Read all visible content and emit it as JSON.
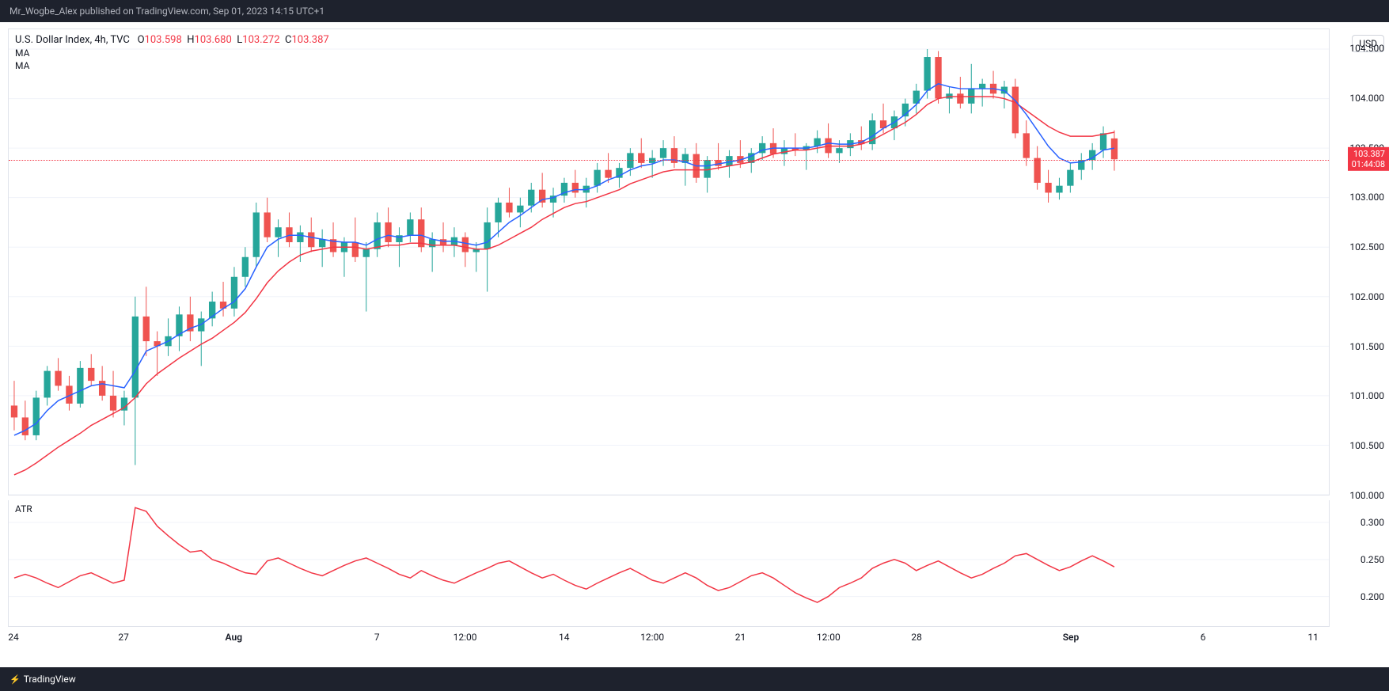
{
  "header": {
    "text": "Mr_Wogbe_Alex published on TradingView.com, Sep 01, 2023 14:15 UTC+1"
  },
  "footer": {
    "brand": "TradingView"
  },
  "legend": {
    "symbol": "U.S. Dollar Index, 4h, TVC",
    "o_label": "O",
    "o_value": "103.598",
    "h_label": "H",
    "h_value": "103.680",
    "l_label": "L",
    "l_value": "103.272",
    "c_label": "C",
    "c_value": "103.387",
    "ma1": "MA",
    "ma2": "MA"
  },
  "currency_badge": "USD",
  "sub_legend": "ATR",
  "current_price_tag": {
    "price": "103.387",
    "countdown": "01:44:08"
  },
  "main_chart": {
    "type": "candlestick",
    "width_bars": 120,
    "ylim": [
      100.0,
      104.7
    ],
    "ytick_step": 0.5,
    "yticks": [
      "104.500",
      "104.000",
      "103.500",
      "103.000",
      "102.500",
      "102.000",
      "101.500",
      "101.000",
      "100.500",
      "100.000"
    ],
    "ytick_values": [
      104.5,
      104.0,
      103.5,
      103.0,
      102.5,
      102.0,
      101.5,
      101.0,
      100.5,
      100.0
    ],
    "grid_color": "#f0f3fa",
    "up_color": "#26a69a",
    "down_color": "#ef5350",
    "up_border": "#26a69a",
    "down_border": "#ef5350",
    "ma_fast_color": "#2962ff",
    "ma_slow_color": "#f23645",
    "current_price": 103.387,
    "candles": [
      {
        "o": 100.9,
        "h": 101.15,
        "l": 100.65,
        "c": 100.78
      },
      {
        "o": 100.78,
        "h": 100.95,
        "l": 100.55,
        "c": 100.6
      },
      {
        "o": 100.6,
        "h": 101.05,
        "l": 100.55,
        "c": 100.98
      },
      {
        "o": 100.98,
        "h": 101.3,
        "l": 100.9,
        "c": 101.25
      },
      {
        "o": 101.25,
        "h": 101.38,
        "l": 101.05,
        "c": 101.1
      },
      {
        "o": 101.1,
        "h": 101.2,
        "l": 100.85,
        "c": 100.92
      },
      {
        "o": 100.92,
        "h": 101.35,
        "l": 100.88,
        "c": 101.28
      },
      {
        "o": 101.28,
        "h": 101.42,
        "l": 101.1,
        "c": 101.15
      },
      {
        "o": 101.15,
        "h": 101.3,
        "l": 100.95,
        "c": 101.0
      },
      {
        "o": 101.0,
        "h": 101.25,
        "l": 100.78,
        "c": 100.85
      },
      {
        "o": 100.85,
        "h": 101.05,
        "l": 100.7,
        "c": 100.98
      },
      {
        "o": 100.98,
        "h": 102.0,
        "l": 100.3,
        "c": 101.8
      },
      {
        "o": 101.8,
        "h": 102.1,
        "l": 101.4,
        "c": 101.55
      },
      {
        "o": 101.55,
        "h": 101.65,
        "l": 101.2,
        "c": 101.5
      },
      {
        "o": 101.5,
        "h": 101.78,
        "l": 101.4,
        "c": 101.6
      },
      {
        "o": 101.6,
        "h": 101.9,
        "l": 101.45,
        "c": 101.82
      },
      {
        "o": 101.82,
        "h": 102.0,
        "l": 101.55,
        "c": 101.65
      },
      {
        "o": 101.65,
        "h": 101.85,
        "l": 101.3,
        "c": 101.78
      },
      {
        "o": 101.78,
        "h": 102.05,
        "l": 101.7,
        "c": 101.95
      },
      {
        "o": 101.95,
        "h": 102.15,
        "l": 101.8,
        "c": 101.88
      },
      {
        "o": 101.88,
        "h": 102.3,
        "l": 101.8,
        "c": 102.2
      },
      {
        "o": 102.2,
        "h": 102.5,
        "l": 102.1,
        "c": 102.4
      },
      {
        "o": 102.4,
        "h": 102.95,
        "l": 102.3,
        "c": 102.85
      },
      {
        "o": 102.85,
        "h": 103.0,
        "l": 102.55,
        "c": 102.6
      },
      {
        "o": 102.6,
        "h": 102.78,
        "l": 102.4,
        "c": 102.7
      },
      {
        "o": 102.7,
        "h": 102.85,
        "l": 102.5,
        "c": 102.55
      },
      {
        "o": 102.55,
        "h": 102.72,
        "l": 102.35,
        "c": 102.65
      },
      {
        "o": 102.65,
        "h": 102.8,
        "l": 102.45,
        "c": 102.5
      },
      {
        "o": 102.5,
        "h": 102.68,
        "l": 102.3,
        "c": 102.58
      },
      {
        "o": 102.58,
        "h": 102.75,
        "l": 102.4,
        "c": 102.45
      },
      {
        "o": 102.45,
        "h": 102.6,
        "l": 102.2,
        "c": 102.55
      },
      {
        "o": 102.55,
        "h": 102.8,
        "l": 102.35,
        "c": 102.4
      },
      {
        "o": 102.4,
        "h": 102.55,
        "l": 101.85,
        "c": 102.48
      },
      {
        "o": 102.48,
        "h": 102.85,
        "l": 102.4,
        "c": 102.75
      },
      {
        "o": 102.75,
        "h": 102.9,
        "l": 102.5,
        "c": 102.55
      },
      {
        "o": 102.55,
        "h": 102.7,
        "l": 102.3,
        "c": 102.62
      },
      {
        "o": 102.62,
        "h": 102.85,
        "l": 102.55,
        "c": 102.78
      },
      {
        "o": 102.78,
        "h": 102.9,
        "l": 102.45,
        "c": 102.5
      },
      {
        "o": 102.5,
        "h": 102.65,
        "l": 102.25,
        "c": 102.58
      },
      {
        "o": 102.58,
        "h": 102.75,
        "l": 102.45,
        "c": 102.52
      },
      {
        "o": 102.52,
        "h": 102.7,
        "l": 102.4,
        "c": 102.6
      },
      {
        "o": 102.6,
        "h": 102.65,
        "l": 102.3,
        "c": 102.45
      },
      {
        "o": 102.45,
        "h": 102.55,
        "l": 102.25,
        "c": 102.48
      },
      {
        "o": 102.48,
        "h": 102.9,
        "l": 102.05,
        "c": 102.75
      },
      {
        "o": 102.75,
        "h": 103.0,
        "l": 102.6,
        "c": 102.95
      },
      {
        "o": 102.95,
        "h": 103.1,
        "l": 102.8,
        "c": 102.85
      },
      {
        "o": 102.85,
        "h": 103.0,
        "l": 102.7,
        "c": 102.92
      },
      {
        "o": 102.92,
        "h": 103.15,
        "l": 102.85,
        "c": 103.08
      },
      {
        "o": 103.08,
        "h": 103.25,
        "l": 102.9,
        "c": 102.95
      },
      {
        "o": 102.95,
        "h": 103.1,
        "l": 102.8,
        "c": 103.02
      },
      {
        "o": 103.02,
        "h": 103.2,
        "l": 102.95,
        "c": 103.15
      },
      {
        "o": 103.15,
        "h": 103.28,
        "l": 103.0,
        "c": 103.05
      },
      {
        "o": 103.05,
        "h": 103.2,
        "l": 102.9,
        "c": 103.12
      },
      {
        "o": 103.12,
        "h": 103.35,
        "l": 103.05,
        "c": 103.28
      },
      {
        "o": 103.28,
        "h": 103.45,
        "l": 103.15,
        "c": 103.2
      },
      {
        "o": 103.2,
        "h": 103.35,
        "l": 103.1,
        "c": 103.3
      },
      {
        "o": 103.3,
        "h": 103.5,
        "l": 103.22,
        "c": 103.45
      },
      {
        "o": 103.45,
        "h": 103.6,
        "l": 103.3,
        "c": 103.35
      },
      {
        "o": 103.35,
        "h": 103.48,
        "l": 103.2,
        "c": 103.4
      },
      {
        "o": 103.4,
        "h": 103.58,
        "l": 103.32,
        "c": 103.5
      },
      {
        "o": 103.5,
        "h": 103.62,
        "l": 103.3,
        "c": 103.35
      },
      {
        "o": 103.35,
        "h": 103.5,
        "l": 103.12,
        "c": 103.44
      },
      {
        "o": 103.44,
        "h": 103.55,
        "l": 103.15,
        "c": 103.2
      },
      {
        "o": 103.2,
        "h": 103.42,
        "l": 103.05,
        "c": 103.38
      },
      {
        "o": 103.38,
        "h": 103.55,
        "l": 103.28,
        "c": 103.32
      },
      {
        "o": 103.32,
        "h": 103.48,
        "l": 103.2,
        "c": 103.42
      },
      {
        "o": 103.42,
        "h": 103.58,
        "l": 103.3,
        "c": 103.35
      },
      {
        "o": 103.35,
        "h": 103.5,
        "l": 103.25,
        "c": 103.45
      },
      {
        "o": 103.45,
        "h": 103.62,
        "l": 103.38,
        "c": 103.55
      },
      {
        "o": 103.55,
        "h": 103.7,
        "l": 103.4,
        "c": 103.44
      },
      {
        "o": 103.44,
        "h": 103.58,
        "l": 103.32,
        "c": 103.5
      },
      {
        "o": 103.5,
        "h": 103.65,
        "l": 103.42,
        "c": 103.48
      },
      {
        "o": 103.48,
        "h": 103.55,
        "l": 103.28,
        "c": 103.52
      },
      {
        "o": 103.52,
        "h": 103.68,
        "l": 103.45,
        "c": 103.6
      },
      {
        "o": 103.6,
        "h": 103.75,
        "l": 103.4,
        "c": 103.45
      },
      {
        "o": 103.45,
        "h": 103.58,
        "l": 103.35,
        "c": 103.5
      },
      {
        "o": 103.5,
        "h": 103.65,
        "l": 103.42,
        "c": 103.58
      },
      {
        "o": 103.58,
        "h": 103.72,
        "l": 103.48,
        "c": 103.54
      },
      {
        "o": 103.54,
        "h": 103.85,
        "l": 103.48,
        "c": 103.78
      },
      {
        "o": 103.78,
        "h": 103.95,
        "l": 103.65,
        "c": 103.7
      },
      {
        "o": 103.7,
        "h": 103.88,
        "l": 103.58,
        "c": 103.82
      },
      {
        "o": 103.82,
        "h": 104.0,
        "l": 103.72,
        "c": 103.95
      },
      {
        "o": 103.95,
        "h": 104.15,
        "l": 103.85,
        "c": 104.08
      },
      {
        "o": 104.08,
        "h": 104.5,
        "l": 104.0,
        "c": 104.42
      },
      {
        "o": 104.42,
        "h": 104.48,
        "l": 103.95,
        "c": 104.0
      },
      {
        "o": 104.0,
        "h": 104.12,
        "l": 103.85,
        "c": 104.05
      },
      {
        "o": 104.05,
        "h": 104.22,
        "l": 103.9,
        "c": 103.95
      },
      {
        "o": 103.95,
        "h": 104.35,
        "l": 103.85,
        "c": 104.1
      },
      {
        "o": 104.1,
        "h": 104.2,
        "l": 103.92,
        "c": 104.15
      },
      {
        "o": 104.15,
        "h": 104.28,
        "l": 104.0,
        "c": 104.05
      },
      {
        "o": 104.05,
        "h": 104.18,
        "l": 103.9,
        "c": 104.12
      },
      {
        "o": 104.12,
        "h": 104.2,
        "l": 103.6,
        "c": 103.65
      },
      {
        "o": 103.65,
        "h": 103.78,
        "l": 103.32,
        "c": 103.4
      },
      {
        "o": 103.4,
        "h": 103.52,
        "l": 103.08,
        "c": 103.15
      },
      {
        "o": 103.15,
        "h": 103.28,
        "l": 102.95,
        "c": 103.05
      },
      {
        "o": 103.05,
        "h": 103.2,
        "l": 102.98,
        "c": 103.12
      },
      {
        "o": 103.12,
        "h": 103.35,
        "l": 103.05,
        "c": 103.28
      },
      {
        "o": 103.28,
        "h": 103.45,
        "l": 103.18,
        "c": 103.38
      },
      {
        "o": 103.38,
        "h": 103.55,
        "l": 103.28,
        "c": 103.48
      },
      {
        "o": 103.48,
        "h": 103.72,
        "l": 103.4,
        "c": 103.65
      },
      {
        "o": 103.598,
        "h": 103.68,
        "l": 103.272,
        "c": 103.387
      }
    ],
    "ma_fast": [
      100.6,
      100.65,
      100.72,
      100.85,
      100.95,
      101.0,
      101.05,
      101.1,
      101.12,
      101.1,
      101.08,
      101.25,
      101.45,
      101.5,
      101.55,
      101.62,
      101.68,
      101.72,
      101.8,
      101.88,
      101.95,
      102.08,
      102.3,
      102.5,
      102.58,
      102.62,
      102.62,
      102.6,
      102.58,
      102.56,
      102.55,
      102.55,
      102.52,
      102.58,
      102.62,
      102.6,
      102.62,
      102.62,
      102.58,
      102.56,
      102.56,
      102.54,
      102.52,
      102.55,
      102.65,
      102.75,
      102.82,
      102.9,
      102.98,
      103.0,
      103.05,
      103.08,
      103.08,
      103.12,
      103.18,
      103.22,
      103.28,
      103.32,
      103.34,
      103.38,
      103.38,
      103.36,
      103.32,
      103.32,
      103.34,
      103.36,
      103.38,
      103.42,
      103.48,
      103.5,
      103.5,
      103.5,
      103.5,
      103.52,
      103.55,
      103.54,
      103.54,
      103.56,
      103.62,
      103.7,
      103.76,
      103.84,
      103.94,
      104.08,
      104.15,
      104.12,
      104.1,
      104.1,
      104.1,
      104.1,
      104.08,
      103.98,
      103.84,
      103.68,
      103.52,
      103.4,
      103.35,
      103.36,
      103.4,
      103.48,
      103.5
    ],
    "ma_slow": [
      100.2,
      100.25,
      100.32,
      100.4,
      100.48,
      100.55,
      100.62,
      100.7,
      100.76,
      100.82,
      100.88,
      100.98,
      101.12,
      101.22,
      101.3,
      101.38,
      101.45,
      101.52,
      101.58,
      101.66,
      101.74,
      101.84,
      101.98,
      102.14,
      102.26,
      102.35,
      102.42,
      102.46,
      102.48,
      102.5,
      102.5,
      102.5,
      102.48,
      102.5,
      102.52,
      102.52,
      102.54,
      102.54,
      102.52,
      102.52,
      102.52,
      102.5,
      102.48,
      102.48,
      102.52,
      102.58,
      102.64,
      102.7,
      102.78,
      102.84,
      102.9,
      102.94,
      102.96,
      103.0,
      103.04,
      103.08,
      103.14,
      103.18,
      103.22,
      103.26,
      103.28,
      103.28,
      103.28,
      103.28,
      103.3,
      103.32,
      103.34,
      103.36,
      103.4,
      103.44,
      103.46,
      103.48,
      103.48,
      103.5,
      103.52,
      103.52,
      103.52,
      103.54,
      103.58,
      103.64,
      103.7,
      103.76,
      103.84,
      103.94,
      104.0,
      104.02,
      104.02,
      104.02,
      104.02,
      104.02,
      104.0,
      103.96,
      103.88,
      103.8,
      103.72,
      103.66,
      103.62,
      103.62,
      103.62,
      103.64,
      103.66
    ]
  },
  "atr_chart": {
    "type": "line",
    "color": "#f23645",
    "ylim": [
      0.16,
      0.33
    ],
    "yticks": [
      "0.300",
      "0.250",
      "0.200"
    ],
    "ytick_values": [
      0.3,
      0.25,
      0.2
    ],
    "values": [
      0.225,
      0.23,
      0.225,
      0.218,
      0.212,
      0.22,
      0.228,
      0.232,
      0.225,
      0.218,
      0.222,
      0.32,
      0.315,
      0.295,
      0.282,
      0.27,
      0.26,
      0.262,
      0.25,
      0.245,
      0.238,
      0.232,
      0.23,
      0.248,
      0.252,
      0.245,
      0.238,
      0.232,
      0.228,
      0.235,
      0.242,
      0.248,
      0.252,
      0.245,
      0.238,
      0.23,
      0.225,
      0.235,
      0.228,
      0.222,
      0.218,
      0.225,
      0.232,
      0.238,
      0.245,
      0.248,
      0.24,
      0.232,
      0.225,
      0.23,
      0.222,
      0.215,
      0.21,
      0.218,
      0.225,
      0.232,
      0.238,
      0.23,
      0.222,
      0.218,
      0.225,
      0.232,
      0.225,
      0.215,
      0.208,
      0.212,
      0.22,
      0.228,
      0.232,
      0.225,
      0.215,
      0.205,
      0.198,
      0.192,
      0.2,
      0.212,
      0.218,
      0.225,
      0.238,
      0.245,
      0.25,
      0.245,
      0.235,
      0.242,
      0.248,
      0.24,
      0.232,
      0.225,
      0.23,
      0.238,
      0.245,
      0.255,
      0.258,
      0.25,
      0.242,
      0.235,
      0.24,
      0.248,
      0.255,
      0.248,
      0.24
    ]
  },
  "x_axis": {
    "labels": [
      {
        "text": "24",
        "pos": 0,
        "bold": false
      },
      {
        "text": "27",
        "pos": 10,
        "bold": false
      },
      {
        "text": "Aug",
        "pos": 20,
        "bold": true
      },
      {
        "text": "7",
        "pos": 33,
        "bold": false
      },
      {
        "text": "12:00",
        "pos": 41,
        "bold": false
      },
      {
        "text": "14",
        "pos": 50,
        "bold": false
      },
      {
        "text": "12:00",
        "pos": 58,
        "bold": false
      },
      {
        "text": "21",
        "pos": 66,
        "bold": false
      },
      {
        "text": "12:00",
        "pos": 74,
        "bold": false
      },
      {
        "text": "28",
        "pos": 82,
        "bold": false
      },
      {
        "text": "Sep",
        "pos": 96,
        "bold": true
      },
      {
        "text": "6",
        "pos": 108,
        "bold": false
      },
      {
        "text": "11",
        "pos": 118,
        "bold": false
      }
    ],
    "total_bars": 120
  }
}
